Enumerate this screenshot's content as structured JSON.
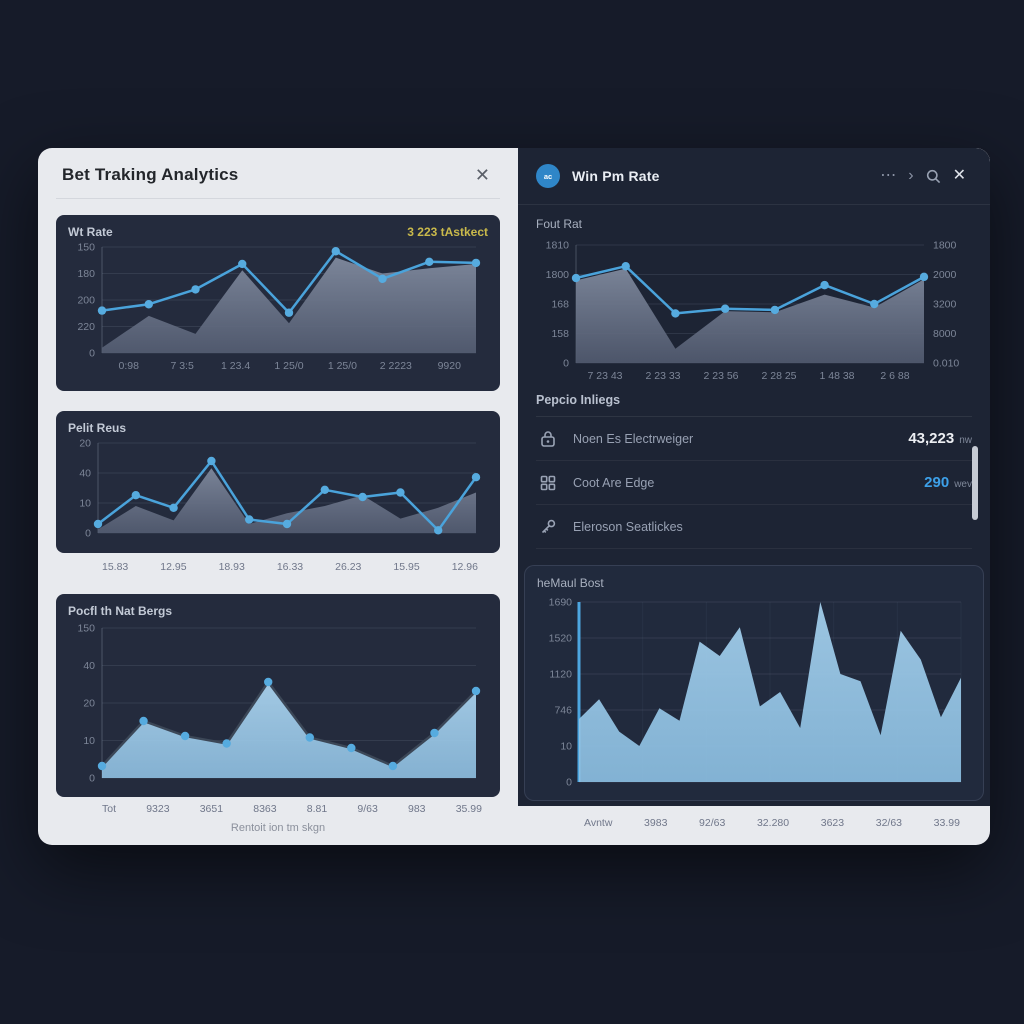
{
  "window": {
    "title": "Bet Traking Analytics",
    "close_icon": "✕",
    "caption": "Rentoit ion tm skgn"
  },
  "right_panel": {
    "avatar_text": "ac",
    "title": "Win Pm Rate",
    "menu_icon": "⋯",
    "chevron_icon": "›",
    "close_icon": "✕",
    "listing": {
      "title": "Pepcio Inliegs",
      "rows": [
        {
          "icon": "lock-icon",
          "label": "Noen Es Electrweiger",
          "value": "43,223",
          "unit": "nw"
        },
        {
          "icon": "grid-icon",
          "label": "Coot Are Edge",
          "value": "290",
          "unit": "wev"
        },
        {
          "icon": "key-icon",
          "label": "Eleroson Seatlickes",
          "value": "",
          "unit": ""
        }
      ]
    }
  },
  "colors": {
    "accent_blue": "#4aa3db",
    "dot_blue": "#56abdf",
    "badge_yellow": "#c9b94b",
    "value_blue": "#3da0e8",
    "page_bg": "#161b29",
    "panel_light": "#e8eaee",
    "card_dark": "#242b3d",
    "right_bg": "#1d2434"
  },
  "chart_data": [
    {
      "id": "win-rate",
      "type": "line",
      "title": "Wt Rate",
      "badge": "3 223 tAstkect",
      "y_labels": [
        "150",
        "180",
        "200",
        "220",
        "0"
      ],
      "x_labels": [
        "0:98",
        "7 3:5",
        "1 23.4",
        "1 25/0",
        "1 25/0",
        "2 2223",
        "9920"
      ],
      "ylim": [
        0,
        100
      ],
      "grid": true,
      "legend": "none",
      "series": [
        {
          "name": "volume-area",
          "type": "area",
          "values": [
            5,
            35,
            18,
            78,
            28,
            90,
            75,
            80,
            84
          ],
          "fill_top": "#808a9e",
          "fill_bottom": "#555e73"
        },
        {
          "name": "win-rate-line",
          "type": "line",
          "values": [
            40,
            46,
            60,
            84,
            38,
            96,
            70,
            86,
            85
          ],
          "color": "#4aa3db",
          "dots": true
        }
      ]
    },
    {
      "id": "profit-reus",
      "type": "line",
      "title": "Pelit Reus",
      "y_labels": [
        "20",
        "40",
        "10",
        "0"
      ],
      "x_labels": [
        "15.83",
        "12.95",
        "18.93",
        "16.33",
        "26.23",
        "15.95",
        "12.96"
      ],
      "ylim": [
        0,
        100
      ],
      "grid": true,
      "series": [
        {
          "name": "volume-area",
          "type": "area",
          "values": [
            4,
            30,
            14,
            72,
            10,
            22,
            30,
            42,
            16,
            28,
            45
          ],
          "fill_top": "#7e889c",
          "fill_bottom": "#545d72"
        },
        {
          "name": "profit-line",
          "type": "line",
          "values": [
            10,
            42,
            28,
            80,
            15,
            10,
            48,
            40,
            45,
            3,
            62
          ],
          "color": "#4aa3db",
          "dots": true
        }
      ]
    },
    {
      "id": "profit-bet-range",
      "type": "area",
      "title": "Pocfl th Nat Bergs",
      "y_labels": [
        "150",
        "40",
        "20",
        "10",
        "0"
      ],
      "x_labels": [
        "Tot",
        "9323",
        "3651",
        "8363",
        "8.81",
        "9/63",
        "983",
        "35.99"
      ],
      "ylim": [
        0,
        100
      ],
      "grid": true,
      "series": [
        {
          "name": "profit-area",
          "type": "area",
          "values": [
            8,
            38,
            28,
            23,
            64,
            27,
            20,
            8,
            30,
            58
          ],
          "fill_top": "#a9d1ec",
          "fill_bottom": "#8fc0e2",
          "line_color": "#3c4757",
          "dots": true
        }
      ]
    },
    {
      "id": "fout-rat",
      "type": "line",
      "title": "Fout Rat",
      "y_labels": [
        "1810",
        "1800",
        "168",
        "158",
        "0"
      ],
      "y_labels_right": [
        "1800",
        "2000",
        "3200",
        "8000",
        "0.010"
      ],
      "x_labels": [
        "7 23 43",
        "2 23 33",
        "2 23 56",
        "2 28 25",
        "1 48 38",
        "2 6 88"
      ],
      "ylim": [
        0,
        100
      ],
      "grid": true,
      "series": [
        {
          "name": "volume-area",
          "type": "area",
          "values": [
            70,
            80,
            12,
            44,
            43,
            58,
            47,
            71
          ],
          "fill_top": "#7e889c",
          "fill_bottom": "#525b70"
        },
        {
          "name": "rate-line",
          "type": "line",
          "values": [
            72,
            82,
            42,
            46,
            45,
            66,
            50,
            73
          ],
          "color": "#4aa3db",
          "dots": true
        }
      ]
    },
    {
      "id": "mutual-bets",
      "type": "area",
      "title": "heMaul Bost",
      "y_labels": [
        "1690",
        "1520",
        "1120",
        "746",
        "10",
        "0"
      ],
      "x_labels": [
        "Avntw",
        "3983",
        "92/63",
        "32.280",
        "3623",
        "32/63",
        "33.99"
      ],
      "ylim": [
        0,
        100
      ],
      "grid": true,
      "v_grid": true,
      "axis_accent": "#4da6e0",
      "series": [
        {
          "name": "bets-area",
          "type": "area",
          "values": [
            35,
            46,
            28,
            20,
            41,
            34,
            78,
            70,
            86,
            42,
            50,
            30,
            100,
            60,
            56,
            26,
            84,
            68,
            36,
            58
          ],
          "fill_top": "#a2cdea",
          "fill_bottom": "#8dc1e4"
        }
      ]
    }
  ]
}
